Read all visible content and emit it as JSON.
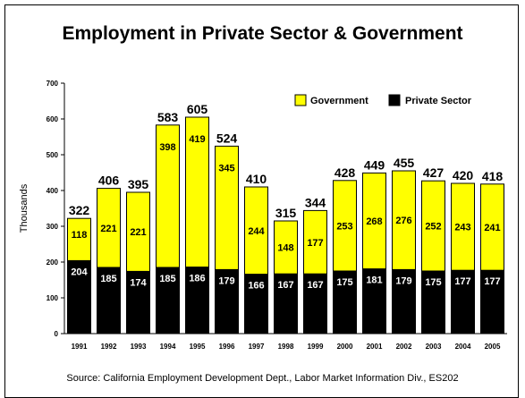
{
  "chart_data": {
    "type": "bar",
    "stacked": true,
    "title": "Employment in Private Sector & Government",
    "ylabel": "Thousands",
    "xlabel": "",
    "ylim": [
      0,
      700
    ],
    "yticks": [
      0,
      100,
      200,
      300,
      400,
      500,
      600,
      700
    ],
    "grid": false,
    "legend_position": "top-right",
    "categories": [
      "1991",
      "1992",
      "1993",
      "1994",
      "1995",
      "1996",
      "1997",
      "1998",
      "1999",
      "2000",
      "2001",
      "2002",
      "2003",
      "2004",
      "2005"
    ],
    "series": [
      {
        "name": "Private Sector",
        "color": "#000000",
        "values": [
          204,
          185,
          174,
          185,
          186,
          179,
          166,
          167,
          167,
          175,
          181,
          179,
          175,
          177,
          177
        ]
      },
      {
        "name": "Government",
        "color": "#ffff00",
        "values": [
          118,
          221,
          221,
          398,
          419,
          345,
          244,
          148,
          177,
          253,
          268,
          276,
          252,
          243,
          241
        ]
      }
    ],
    "totals": [
      322,
      406,
      395,
      583,
      605,
      524,
      410,
      315,
      344,
      428,
      449,
      455,
      427,
      420,
      418
    ],
    "legend_order": [
      "Government",
      "Private Sector"
    ]
  },
  "source": "Source: California Employment Development Dept., Labor Market Information Div., ES202"
}
